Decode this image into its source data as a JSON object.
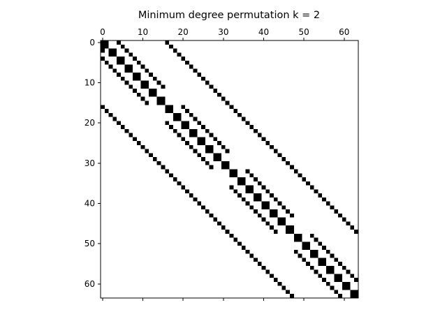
{
  "chart_data": {
    "type": "heatmap",
    "title": "Minimum degree permutation  k = 2",
    "xlabel": "",
    "ylabel": "",
    "matrix_size": 64,
    "xlim": [
      -0.5,
      63.5
    ],
    "ylim": [
      63.5,
      -0.5
    ],
    "x_ticks": [
      0,
      10,
      20,
      30,
      40,
      50,
      60
    ],
    "y_ticks": [
      0,
      10,
      20,
      30,
      40,
      50,
      60
    ],
    "x_tick_position": "top",
    "grid": false,
    "colors": {
      "nonzero": "#000000",
      "zero": "#ffffff"
    },
    "nonzero_cells": [
      [
        0,
        0
      ],
      [
        0,
        1
      ],
      [
        0,
        4
      ],
      [
        0,
        16
      ],
      [
        1,
        0
      ],
      [
        1,
        1
      ],
      [
        1,
        5
      ],
      [
        1,
        17
      ],
      [
        2,
        0
      ],
      [
        2,
        2
      ],
      [
        2,
        3
      ],
      [
        2,
        6
      ],
      [
        2,
        18
      ],
      [
        3,
        2
      ],
      [
        3,
        3
      ],
      [
        3,
        7
      ],
      [
        3,
        19
      ],
      [
        4,
        0
      ],
      [
        4,
        4
      ],
      [
        4,
        5
      ],
      [
        4,
        8
      ],
      [
        4,
        20
      ],
      [
        5,
        1
      ],
      [
        5,
        4
      ],
      [
        5,
        5
      ],
      [
        5,
        9
      ],
      [
        5,
        21
      ],
      [
        6,
        2
      ],
      [
        6,
        6
      ],
      [
        6,
        7
      ],
      [
        6,
        10
      ],
      [
        6,
        22
      ],
      [
        7,
        3
      ],
      [
        7,
        6
      ],
      [
        7,
        7
      ],
      [
        7,
        11
      ],
      [
        7,
        23
      ],
      [
        8,
        4
      ],
      [
        8,
        8
      ],
      [
        8,
        9
      ],
      [
        8,
        12
      ],
      [
        8,
        24
      ],
      [
        9,
        5
      ],
      [
        9,
        8
      ],
      [
        9,
        9
      ],
      [
        9,
        13
      ],
      [
        9,
        25
      ],
      [
        10,
        6
      ],
      [
        10,
        10
      ],
      [
        10,
        11
      ],
      [
        10,
        14
      ],
      [
        10,
        26
      ],
      [
        11,
        7
      ],
      [
        11,
        10
      ],
      [
        11,
        11
      ],
      [
        11,
        15
      ],
      [
        11,
        27
      ],
      [
        12,
        8
      ],
      [
        12,
        12
      ],
      [
        12,
        13
      ],
      [
        12,
        28
      ],
      [
        13,
        9
      ],
      [
        13,
        12
      ],
      [
        13,
        13
      ],
      [
        13,
        29
      ],
      [
        14,
        10
      ],
      [
        14,
        14
      ],
      [
        14,
        15
      ],
      [
        14,
        30
      ],
      [
        15,
        11
      ],
      [
        15,
        14
      ],
      [
        15,
        15
      ],
      [
        15,
        31
      ],
      [
        16,
        0
      ],
      [
        16,
        16
      ],
      [
        16,
        17
      ],
      [
        16,
        20
      ],
      [
        16,
        32
      ],
      [
        17,
        1
      ],
      [
        17,
        16
      ],
      [
        17,
        17
      ],
      [
        17,
        21
      ],
      [
        17,
        33
      ],
      [
        18,
        2
      ],
      [
        18,
        18
      ],
      [
        18,
        19
      ],
      [
        18,
        22
      ],
      [
        18,
        34
      ],
      [
        19,
        3
      ],
      [
        19,
        18
      ],
      [
        19,
        19
      ],
      [
        19,
        23
      ],
      [
        19,
        35
      ],
      [
        20,
        4
      ],
      [
        20,
        16
      ],
      [
        20,
        20
      ],
      [
        20,
        21
      ],
      [
        20,
        24
      ],
      [
        20,
        36
      ],
      [
        21,
        5
      ],
      [
        21,
        17
      ],
      [
        21,
        20
      ],
      [
        21,
        21
      ],
      [
        21,
        25
      ],
      [
        21,
        37
      ],
      [
        22,
        6
      ],
      [
        22,
        18
      ],
      [
        22,
        22
      ],
      [
        22,
        23
      ],
      [
        22,
        26
      ],
      [
        22,
        38
      ],
      [
        23,
        7
      ],
      [
        23,
        19
      ],
      [
        23,
        22
      ],
      [
        23,
        23
      ],
      [
        23,
        27
      ],
      [
        23,
        39
      ],
      [
        24,
        8
      ],
      [
        24,
        20
      ],
      [
        24,
        24
      ],
      [
        24,
        25
      ],
      [
        24,
        28
      ],
      [
        24,
        40
      ],
      [
        25,
        9
      ],
      [
        25,
        21
      ],
      [
        25,
        24
      ],
      [
        25,
        25
      ],
      [
        25,
        29
      ],
      [
        25,
        41
      ],
      [
        26,
        10
      ],
      [
        26,
        22
      ],
      [
        26,
        26
      ],
      [
        26,
        27
      ],
      [
        26,
        30
      ],
      [
        26,
        42
      ],
      [
        27,
        11
      ],
      [
        27,
        23
      ],
      [
        27,
        26
      ],
      [
        27,
        27
      ],
      [
        27,
        31
      ],
      [
        27,
        43
      ],
      [
        28,
        12
      ],
      [
        28,
        24
      ],
      [
        28,
        28
      ],
      [
        28,
        29
      ],
      [
        28,
        44
      ],
      [
        29,
        13
      ],
      [
        29,
        25
      ],
      [
        29,
        28
      ],
      [
        29,
        29
      ],
      [
        29,
        45
      ],
      [
        30,
        14
      ],
      [
        30,
        26
      ],
      [
        30,
        30
      ],
      [
        30,
        31
      ],
      [
        30,
        46
      ],
      [
        31,
        15
      ],
      [
        31,
        27
      ],
      [
        31,
        30
      ],
      [
        31,
        31
      ],
      [
        31,
        47
      ],
      [
        32,
        16
      ],
      [
        32,
        32
      ],
      [
        32,
        33
      ],
      [
        32,
        36
      ],
      [
        32,
        48
      ],
      [
        33,
        17
      ],
      [
        33,
        32
      ],
      [
        33,
        33
      ],
      [
        33,
        37
      ],
      [
        33,
        49
      ],
      [
        34,
        18
      ],
      [
        34,
        34
      ],
      [
        34,
        35
      ],
      [
        34,
        38
      ],
      [
        34,
        50
      ],
      [
        35,
        19
      ],
      [
        35,
        34
      ],
      [
        35,
        35
      ],
      [
        35,
        39
      ],
      [
        35,
        51
      ],
      [
        36,
        20
      ],
      [
        36,
        32
      ],
      [
        36,
        36
      ],
      [
        36,
        37
      ],
      [
        36,
        40
      ],
      [
        36,
        52
      ],
      [
        37,
        21
      ],
      [
        37,
        33
      ],
      [
        37,
        36
      ],
      [
        37,
        37
      ],
      [
        37,
        41
      ],
      [
        37,
        53
      ],
      [
        38,
        22
      ],
      [
        38,
        34
      ],
      [
        38,
        38
      ],
      [
        38,
        39
      ],
      [
        38,
        42
      ],
      [
        38,
        54
      ],
      [
        39,
        23
      ],
      [
        39,
        35
      ],
      [
        39,
        38
      ],
      [
        39,
        39
      ],
      [
        39,
        43
      ],
      [
        39,
        55
      ],
      [
        40,
        24
      ],
      [
        40,
        36
      ],
      [
        40,
        40
      ],
      [
        40,
        41
      ],
      [
        40,
        44
      ],
      [
        40,
        56
      ],
      [
        41,
        25
      ],
      [
        41,
        37
      ],
      [
        41,
        40
      ],
      [
        41,
        41
      ],
      [
        41,
        45
      ],
      [
        41,
        57
      ],
      [
        42,
        26
      ],
      [
        42,
        38
      ],
      [
        42,
        42
      ],
      [
        42,
        43
      ],
      [
        42,
        46
      ],
      [
        42,
        58
      ],
      [
        43,
        27
      ],
      [
        43,
        39
      ],
      [
        43,
        42
      ],
      [
        43,
        43
      ],
      [
        43,
        47
      ],
      [
        43,
        59
      ],
      [
        44,
        28
      ],
      [
        44,
        40
      ],
      [
        44,
        44
      ],
      [
        44,
        45
      ],
      [
        44,
        60
      ],
      [
        45,
        29
      ],
      [
        45,
        41
      ],
      [
        45,
        44
      ],
      [
        45,
        45
      ],
      [
        45,
        61
      ],
      [
        46,
        30
      ],
      [
        46,
        42
      ],
      [
        46,
        46
      ],
      [
        46,
        47
      ],
      [
        46,
        62
      ],
      [
        47,
        31
      ],
      [
        47,
        43
      ],
      [
        47,
        46
      ],
      [
        47,
        47
      ],
      [
        47,
        63
      ],
      [
        48,
        32
      ],
      [
        48,
        48
      ],
      [
        48,
        49
      ],
      [
        48,
        52
      ],
      [
        49,
        33
      ],
      [
        49,
        48
      ],
      [
        49,
        49
      ],
      [
        49,
        53
      ],
      [
        50,
        34
      ],
      [
        50,
        50
      ],
      [
        50,
        51
      ],
      [
        50,
        54
      ],
      [
        51,
        35
      ],
      [
        51,
        50
      ],
      [
        51,
        51
      ],
      [
        51,
        55
      ],
      [
        52,
        36
      ],
      [
        52,
        48
      ],
      [
        52,
        52
      ],
      [
        52,
        53
      ],
      [
        52,
        56
      ],
      [
        53,
        37
      ],
      [
        53,
        49
      ],
      [
        53,
        52
      ],
      [
        53,
        53
      ],
      [
        53,
        57
      ],
      [
        54,
        38
      ],
      [
        54,
        50
      ],
      [
        54,
        54
      ],
      [
        54,
        55
      ],
      [
        54,
        58
      ],
      [
        55,
        39
      ],
      [
        55,
        51
      ],
      [
        55,
        54
      ],
      [
        55,
        55
      ],
      [
        55,
        59
      ],
      [
        56,
        40
      ],
      [
        56,
        52
      ],
      [
        56,
        56
      ],
      [
        56,
        57
      ],
      [
        56,
        60
      ],
      [
        57,
        41
      ],
      [
        57,
        53
      ],
      [
        57,
        56
      ],
      [
        57,
        57
      ],
      [
        57,
        61
      ],
      [
        58,
        42
      ],
      [
        58,
        54
      ],
      [
        58,
        58
      ],
      [
        58,
        59
      ],
      [
        58,
        62
      ],
      [
        59,
        43
      ],
      [
        59,
        55
      ],
      [
        59,
        58
      ],
      [
        59,
        59
      ],
      [
        59,
        63
      ],
      [
        60,
        44
      ],
      [
        60,
        56
      ],
      [
        60,
        60
      ],
      [
        60,
        61
      ],
      [
        61,
        45
      ],
      [
        61,
        57
      ],
      [
        61,
        60
      ],
      [
        61,
        61
      ],
      [
        62,
        46
      ],
      [
        62,
        58
      ],
      [
        62,
        62
      ],
      [
        62,
        63
      ],
      [
        63,
        47
      ],
      [
        63,
        59
      ],
      [
        63,
        62
      ],
      [
        63,
        63
      ]
    ]
  }
}
